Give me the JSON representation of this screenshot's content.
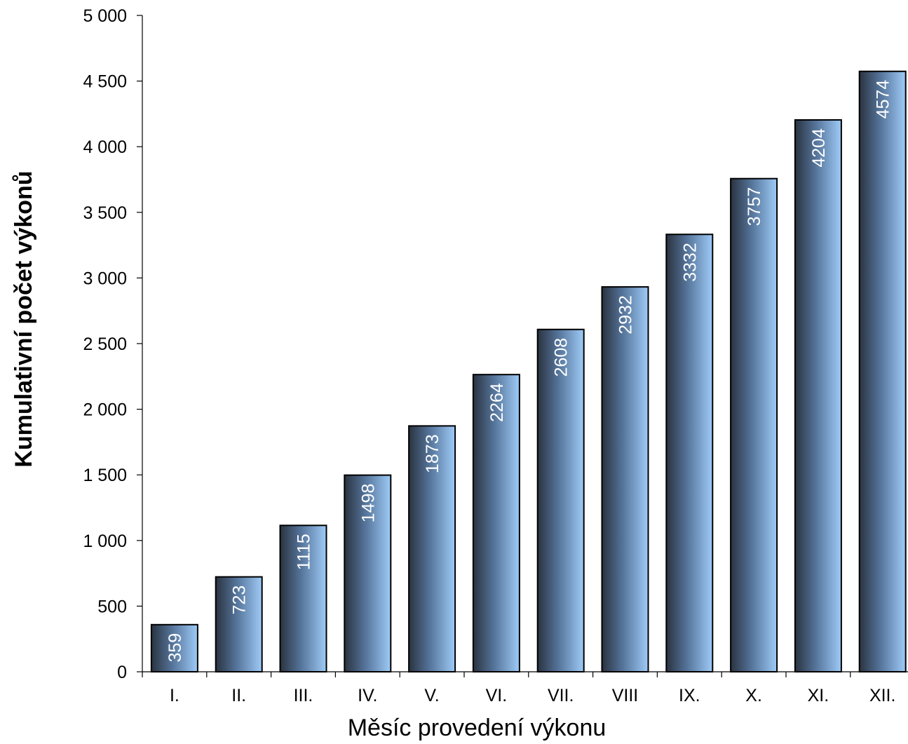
{
  "colors": {
    "bar_dark": "#2a3340",
    "bar_light": "#9ecbf7",
    "bar_outline": "#000000",
    "label_text": "#ffffff",
    "axis": "#000000"
  },
  "chart_data": {
    "type": "bar",
    "title": "",
    "xlabel": "Měsíc provedení výkonu",
    "ylabel": "Kumulativní počet výkonů",
    "categories": [
      "I.",
      "II.",
      "III.",
      "IV.",
      "V.",
      "VI.",
      "VII.",
      "VIII",
      "IX.",
      "X.",
      "XI.",
      "XII."
    ],
    "values": [
      359,
      723,
      1115,
      1498,
      1873,
      2264,
      2608,
      2932,
      3332,
      3757,
      4204,
      4574
    ],
    "value_labels": [
      "359",
      "723",
      "1115",
      "1498",
      "1873",
      "2264",
      "2608",
      "2932",
      "3332",
      "3757",
      "4204",
      "4574"
    ],
    "ylim": [
      0,
      5000
    ],
    "yticks": [
      0,
      500,
      1000,
      1500,
      2000,
      2500,
      3000,
      3500,
      4000,
      4500,
      5000
    ],
    "ytick_labels": [
      "0",
      "500",
      "1 000",
      "1 500",
      "2 000",
      "2 500",
      "3 000",
      "3 500",
      "4 000",
      "4 500",
      "5 000"
    ],
    "grid": false,
    "legend": "none",
    "data_label_orientation": "vertical"
  }
}
